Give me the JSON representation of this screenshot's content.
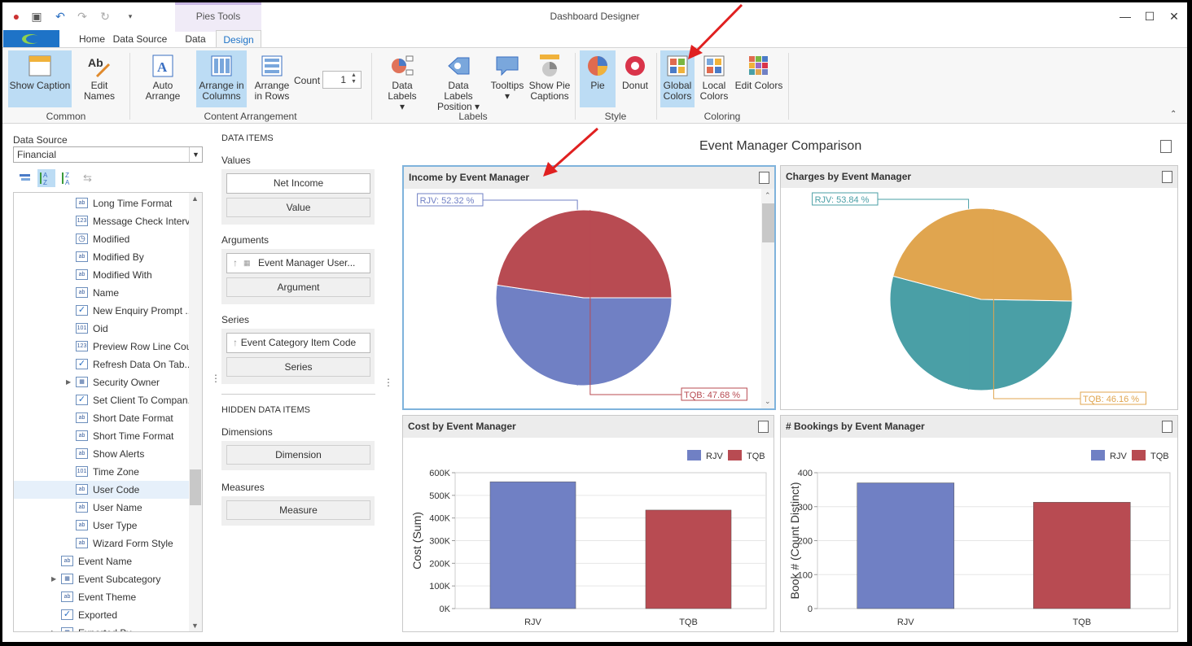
{
  "app": {
    "title": "Dashboard Designer",
    "context_tab": "Pies Tools"
  },
  "tabs": [
    {
      "label": "Home"
    },
    {
      "label": "Data Source"
    },
    {
      "label": "Data"
    },
    {
      "label": "Design"
    }
  ],
  "ribbon": {
    "common": {
      "group": "Common",
      "show_caption": "Show Caption",
      "edit_names": "Edit Names"
    },
    "arrangement": {
      "group": "Content Arrangement",
      "auto_arrange": "Auto Arrange",
      "arrange_columns_1": "Arrange in",
      "arrange_columns_2": "Columns",
      "arrange_rows_1": "Arrange",
      "arrange_rows_2": "in Rows",
      "count_label": "Count",
      "count_value": "1"
    },
    "labels": {
      "group": "Labels",
      "data_labels": "Data Labels",
      "data_labels_position_1": "Data Labels",
      "data_labels_position_2": "Position",
      "tooltips": "Tooltips",
      "show_pie_captions_1": "Show Pie",
      "show_pie_captions_2": "Captions"
    },
    "style": {
      "group": "Style",
      "pie": "Pie",
      "donut": "Donut"
    },
    "coloring": {
      "group": "Coloring",
      "global_1": "Global",
      "global_2": "Colors",
      "local_1": "Local",
      "local_2": "Colors",
      "edit_colors": "Edit Colors"
    }
  },
  "data_source": {
    "label": "Data Source",
    "selected": "Financial",
    "fields": [
      {
        "label": "Long Time Format",
        "type": "ab",
        "indent": 2
      },
      {
        "label": "Message Check Interval",
        "type": "123",
        "indent": 2
      },
      {
        "label": "Modified",
        "type": "clock",
        "indent": 2
      },
      {
        "label": "Modified By",
        "type": "ab",
        "indent": 2
      },
      {
        "label": "Modified With",
        "type": "ab",
        "indent": 2
      },
      {
        "label": "Name",
        "type": "ab",
        "indent": 2
      },
      {
        "label": "New Enquiry Prompt ...",
        "type": "check",
        "indent": 2
      },
      {
        "label": "Oid",
        "type": "101",
        "indent": 2
      },
      {
        "label": "Preview Row Line Count",
        "type": "123",
        "indent": 2
      },
      {
        "label": "Refresh Data On Tab...",
        "type": "check",
        "indent": 2
      },
      {
        "label": "Security Owner",
        "type": "table",
        "indent": 2,
        "expandable": true
      },
      {
        "label": "Set Client To Compan...",
        "type": "check",
        "indent": 2
      },
      {
        "label": "Short Date Format",
        "type": "ab",
        "indent": 2
      },
      {
        "label": "Short Time Format",
        "type": "ab",
        "indent": 2
      },
      {
        "label": "Show Alerts",
        "type": "ab",
        "indent": 2
      },
      {
        "label": "Time Zone",
        "type": "101",
        "indent": 2
      },
      {
        "label": "User Code",
        "type": "ab",
        "indent": 2,
        "selected": true
      },
      {
        "label": "User Name",
        "type": "ab",
        "indent": 2
      },
      {
        "label": "User Type",
        "type": "ab",
        "indent": 2
      },
      {
        "label": "Wizard Form Style",
        "type": "ab",
        "indent": 2
      },
      {
        "label": "Event Name",
        "type": "ab",
        "indent": 1
      },
      {
        "label": "Event Subcategory",
        "type": "table",
        "indent": 1,
        "expandable": true
      },
      {
        "label": "Event Theme",
        "type": "ab",
        "indent": 1
      },
      {
        "label": "Exported",
        "type": "check",
        "indent": 1
      },
      {
        "label": "Exported By",
        "type": "table",
        "indent": 1,
        "expandable": true
      }
    ]
  },
  "data_items": {
    "heading": "DATA ITEMS",
    "values_label": "Values",
    "values_item": "Net Income",
    "values_placeholder": "Value",
    "arguments_label": "Arguments",
    "arguments_item": "Event Manager User...",
    "arguments_placeholder": "Argument",
    "series_label": "Series",
    "series_item": "Event Category Item Code",
    "series_placeholder": "Series",
    "hidden_heading": "HIDDEN DATA ITEMS",
    "dimensions_label": "Dimensions",
    "dimensions_placeholder": "Dimension",
    "measures_label": "Measures",
    "measures_placeholder": "Measure"
  },
  "dashboard": {
    "title": "Event Manager Comparison",
    "colors": {
      "rjv_pie": "#7080c4",
      "tqb_pie": "#b84b52",
      "rjv_charges": "#4a9fa6",
      "tqb_charges": "#e0a54f",
      "selection": "#7fb3dc"
    }
  },
  "chart_data": [
    {
      "type": "pie",
      "title": "Income by Event Manager",
      "categories": [
        "RJV",
        "TQB"
      ],
      "values": [
        52.32,
        47.68
      ],
      "labels": [
        "RJV: 52.32 %",
        "TQB: 47.68 %"
      ]
    },
    {
      "type": "pie",
      "title": "Charges by Event Manager",
      "categories": [
        "RJV",
        "TQB"
      ],
      "values": [
        53.84,
        46.16
      ],
      "labels": [
        "RJV: 53.84 %",
        "TQB: 46.16 %"
      ]
    },
    {
      "type": "bar",
      "title": "Cost by Event Manager",
      "categories": [
        "RJV",
        "TQB"
      ],
      "values": [
        560000,
        435000
      ],
      "ylabel": "Cost (Sum)",
      "ylim": [
        0,
        600000
      ],
      "yticks": [
        "0K",
        "100K",
        "200K",
        "300K",
        "400K",
        "500K",
        "600K"
      ],
      "legend": [
        "RJV",
        "TQB"
      ],
      "legend_position": "top-right"
    },
    {
      "type": "bar",
      "title": "# Bookings by Event Manager",
      "categories": [
        "RJV",
        "TQB"
      ],
      "values": [
        370,
        313
      ],
      "ylabel": "Book # (Count Distinct)",
      "ylim": [
        0,
        400
      ],
      "yticks": [
        "0",
        "100",
        "200",
        "300",
        "400"
      ],
      "legend": [
        "RJV",
        "TQB"
      ],
      "legend_position": "top-right"
    }
  ]
}
